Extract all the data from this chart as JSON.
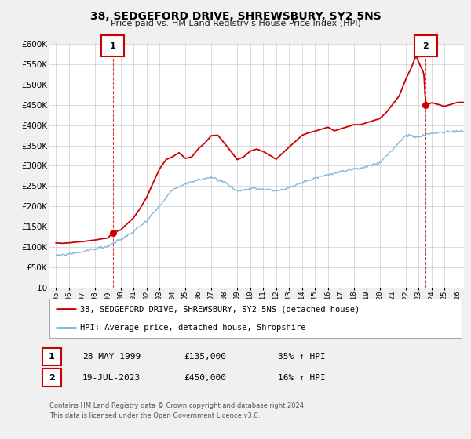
{
  "title": "38, SEDGEFORD DRIVE, SHREWSBURY, SY2 5NS",
  "subtitle": "Price paid vs. HM Land Registry's House Price Index (HPI)",
  "legend_line1": "38, SEDGEFORD DRIVE, SHREWSBURY, SY2 5NS (detached house)",
  "legend_line2": "HPI: Average price, detached house, Shropshire",
  "annotation1_date": "28-MAY-1999",
  "annotation1_price": "£135,000",
  "annotation1_hpi": "35% ↑ HPI",
  "annotation2_date": "19-JUL-2023",
  "annotation2_price": "£450,000",
  "annotation2_hpi": "16% ↑ HPI",
  "footnote1": "Contains HM Land Registry data © Crown copyright and database right 2024.",
  "footnote2": "This data is licensed under the Open Government Licence v3.0.",
  "red_color": "#cc0000",
  "blue_color": "#7ab0d4",
  "background_color": "#f0f0f0",
  "plot_bg_color": "#ffffff",
  "grid_color": "#cccccc",
  "ylim": [
    0,
    600000
  ],
  "yticks": [
    0,
    50000,
    100000,
    150000,
    200000,
    250000,
    300000,
    350000,
    400000,
    450000,
    500000,
    550000,
    600000
  ],
  "xlim_start": 1994.5,
  "xlim_end": 2026.5,
  "sale1_x": 1999.4,
  "sale1_y": 135000,
  "sale2_x": 2023.54,
  "sale2_y": 450000,
  "vline1_x": 1999.4,
  "vline2_x": 2023.54,
  "hpi_anchors_x": [
    1995,
    1996,
    1997,
    1998,
    1999,
    2000,
    2001,
    2002,
    2003,
    2004,
    2005,
    2006,
    2007,
    2008,
    2009,
    2010,
    2011,
    2012,
    2013,
    2014,
    2015,
    2016,
    2017,
    2018,
    2019,
    2020,
    2021,
    2022,
    2023,
    2024,
    2025,
    2026
  ],
  "hpi_anchors_y": [
    78000,
    83000,
    88000,
    95000,
    102000,
    118000,
    138000,
    165000,
    200000,
    240000,
    255000,
    265000,
    272000,
    260000,
    237000,
    245000,
    243000,
    238000,
    245000,
    258000,
    270000,
    278000,
    285000,
    290000,
    298000,
    308000,
    340000,
    375000,
    370000,
    380000,
    383000,
    385000
  ],
  "red_anchors_x": [
    1995.0,
    1995.5,
    1996.0,
    1996.5,
    1997.0,
    1997.5,
    1998.0,
    1998.5,
    1999.0,
    1999.4,
    2000.0,
    2001.0,
    2001.5,
    2002.0,
    2002.5,
    2003.0,
    2003.5,
    2004.0,
    2004.5,
    2005.0,
    2005.5,
    2006.0,
    2006.5,
    2007.0,
    2007.5,
    2008.0,
    2008.5,
    2009.0,
    2009.5,
    2010.0,
    2010.5,
    2011.0,
    2011.5,
    2012.0,
    2012.5,
    2013.0,
    2013.5,
    2014.0,
    2014.5,
    2015.0,
    2015.5,
    2016.0,
    2016.5,
    2017.0,
    2017.5,
    2018.0,
    2018.5,
    2019.0,
    2019.5,
    2020.0,
    2020.5,
    2021.0,
    2021.5,
    2022.0,
    2022.5,
    2022.8,
    2023.0,
    2023.2,
    2023.4,
    2023.54,
    2023.7,
    2024.0,
    2024.5,
    2025.0,
    2025.5,
    2026.0
  ],
  "red_anchors_y": [
    110000,
    109000,
    110000,
    112000,
    113000,
    115000,
    117000,
    120000,
    122000,
    135000,
    142000,
    172000,
    195000,
    222000,
    258000,
    292000,
    315000,
    322000,
    332000,
    318000,
    322000,
    342000,
    356000,
    374000,
    375000,
    356000,
    336000,
    315000,
    322000,
    336000,
    341000,
    335000,
    326000,
    316000,
    331000,
    346000,
    360000,
    375000,
    381000,
    385000,
    390000,
    395000,
    386000,
    391000,
    396000,
    401000,
    401000,
    406000,
    411000,
    416000,
    431000,
    451000,
    472000,
    512000,
    546000,
    571000,
    556000,
    541000,
    531000,
    450000,
    450000,
    455000,
    451000,
    446000,
    451000,
    456000
  ]
}
